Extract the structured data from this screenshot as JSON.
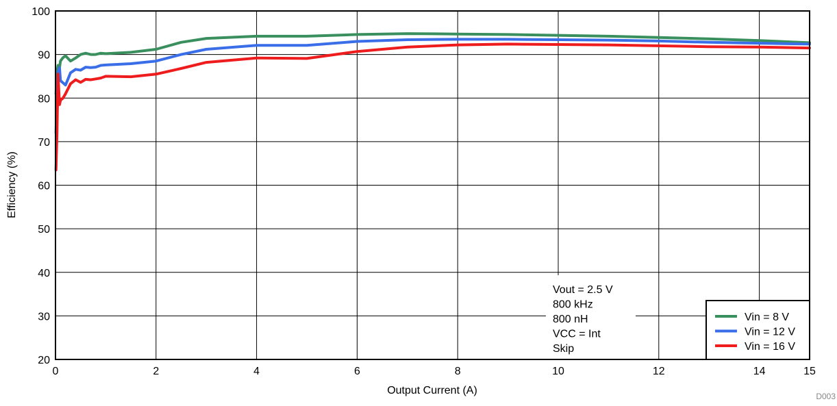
{
  "chart_data": {
    "type": "line",
    "title": "",
    "xlabel": "Output Current (A)",
    "ylabel": "Efficiency (%)",
    "xlim": [
      0,
      15
    ],
    "ylim": [
      20,
      100
    ],
    "xticks": [
      0,
      2,
      4,
      6,
      8,
      10,
      12,
      14,
      15
    ],
    "yticks": [
      20,
      30,
      40,
      50,
      60,
      70,
      80,
      90,
      100
    ],
    "grid": true,
    "legend_position": "bottom-right",
    "annotation_lines": [
      "Vout = 2.5 V",
      "800 kHz",
      "800 nH",
      "VCC = Int",
      "Skip"
    ],
    "footer_code": "D003",
    "series": [
      {
        "name": "Vin = 8 V",
        "color": "#3a8f5e",
        "x": [
          0.01,
          0.03,
          0.05,
          0.08,
          0.1,
          0.15,
          0.2,
          0.3,
          0.4,
          0.5,
          0.6,
          0.7,
          0.8,
          0.9,
          1.0,
          1.5,
          2.0,
          2.5,
          3.0,
          4.0,
          5.0,
          6.0,
          7.0,
          8.0,
          9.0,
          10.0,
          11.0,
          12.0,
          13.0,
          14.0,
          15.0
        ],
        "y": [
          81.0,
          86.0,
          87.5,
          87.0,
          88.5,
          89.3,
          89.7,
          88.5,
          89.2,
          90.0,
          90.3,
          90.0,
          90.0,
          90.3,
          90.2,
          90.5,
          91.2,
          92.8,
          93.7,
          94.2,
          94.2,
          94.6,
          94.8,
          94.7,
          94.6,
          94.4,
          94.2,
          93.9,
          93.6,
          93.2,
          92.7
        ]
      },
      {
        "name": "Vin = 12 V",
        "color": "#3a6ee8",
        "x": [
          0.01,
          0.03,
          0.05,
          0.08,
          0.1,
          0.15,
          0.2,
          0.3,
          0.4,
          0.5,
          0.6,
          0.7,
          0.8,
          0.9,
          1.0,
          1.5,
          2.0,
          2.5,
          3.0,
          4.0,
          5.0,
          6.0,
          7.0,
          8.0,
          9.0,
          10.0,
          11.0,
          12.0,
          13.0,
          14.0,
          15.0
        ],
        "y": [
          72.0,
          81.0,
          86.0,
          87.0,
          84.0,
          83.5,
          83.0,
          85.8,
          86.6,
          86.4,
          87.1,
          87.0,
          87.1,
          87.5,
          87.6,
          87.9,
          88.5,
          90.0,
          91.2,
          92.1,
          92.1,
          93.0,
          93.4,
          93.5,
          93.5,
          93.4,
          93.3,
          93.1,
          92.8,
          92.6,
          92.4
        ]
      },
      {
        "name": "Vin = 16 V",
        "color": "#ee1c1c",
        "x": [
          0.01,
          0.03,
          0.05,
          0.08,
          0.1,
          0.15,
          0.2,
          0.3,
          0.4,
          0.5,
          0.6,
          0.7,
          0.8,
          0.9,
          1.0,
          1.5,
          2.0,
          2.5,
          3.0,
          4.0,
          5.0,
          6.0,
          7.0,
          8.0,
          9.0,
          10.0,
          11.0,
          12.0,
          13.0,
          14.0,
          15.0
        ],
        "y": [
          63.5,
          72.0,
          85.5,
          78.5,
          79.5,
          80.0,
          81.0,
          83.3,
          84.2,
          83.6,
          84.3,
          84.2,
          84.4,
          84.6,
          85.0,
          84.9,
          85.5,
          86.8,
          88.2,
          89.2,
          89.1,
          90.7,
          91.7,
          92.2,
          92.4,
          92.3,
          92.2,
          92.0,
          91.8,
          91.7,
          91.5
        ]
      }
    ]
  }
}
